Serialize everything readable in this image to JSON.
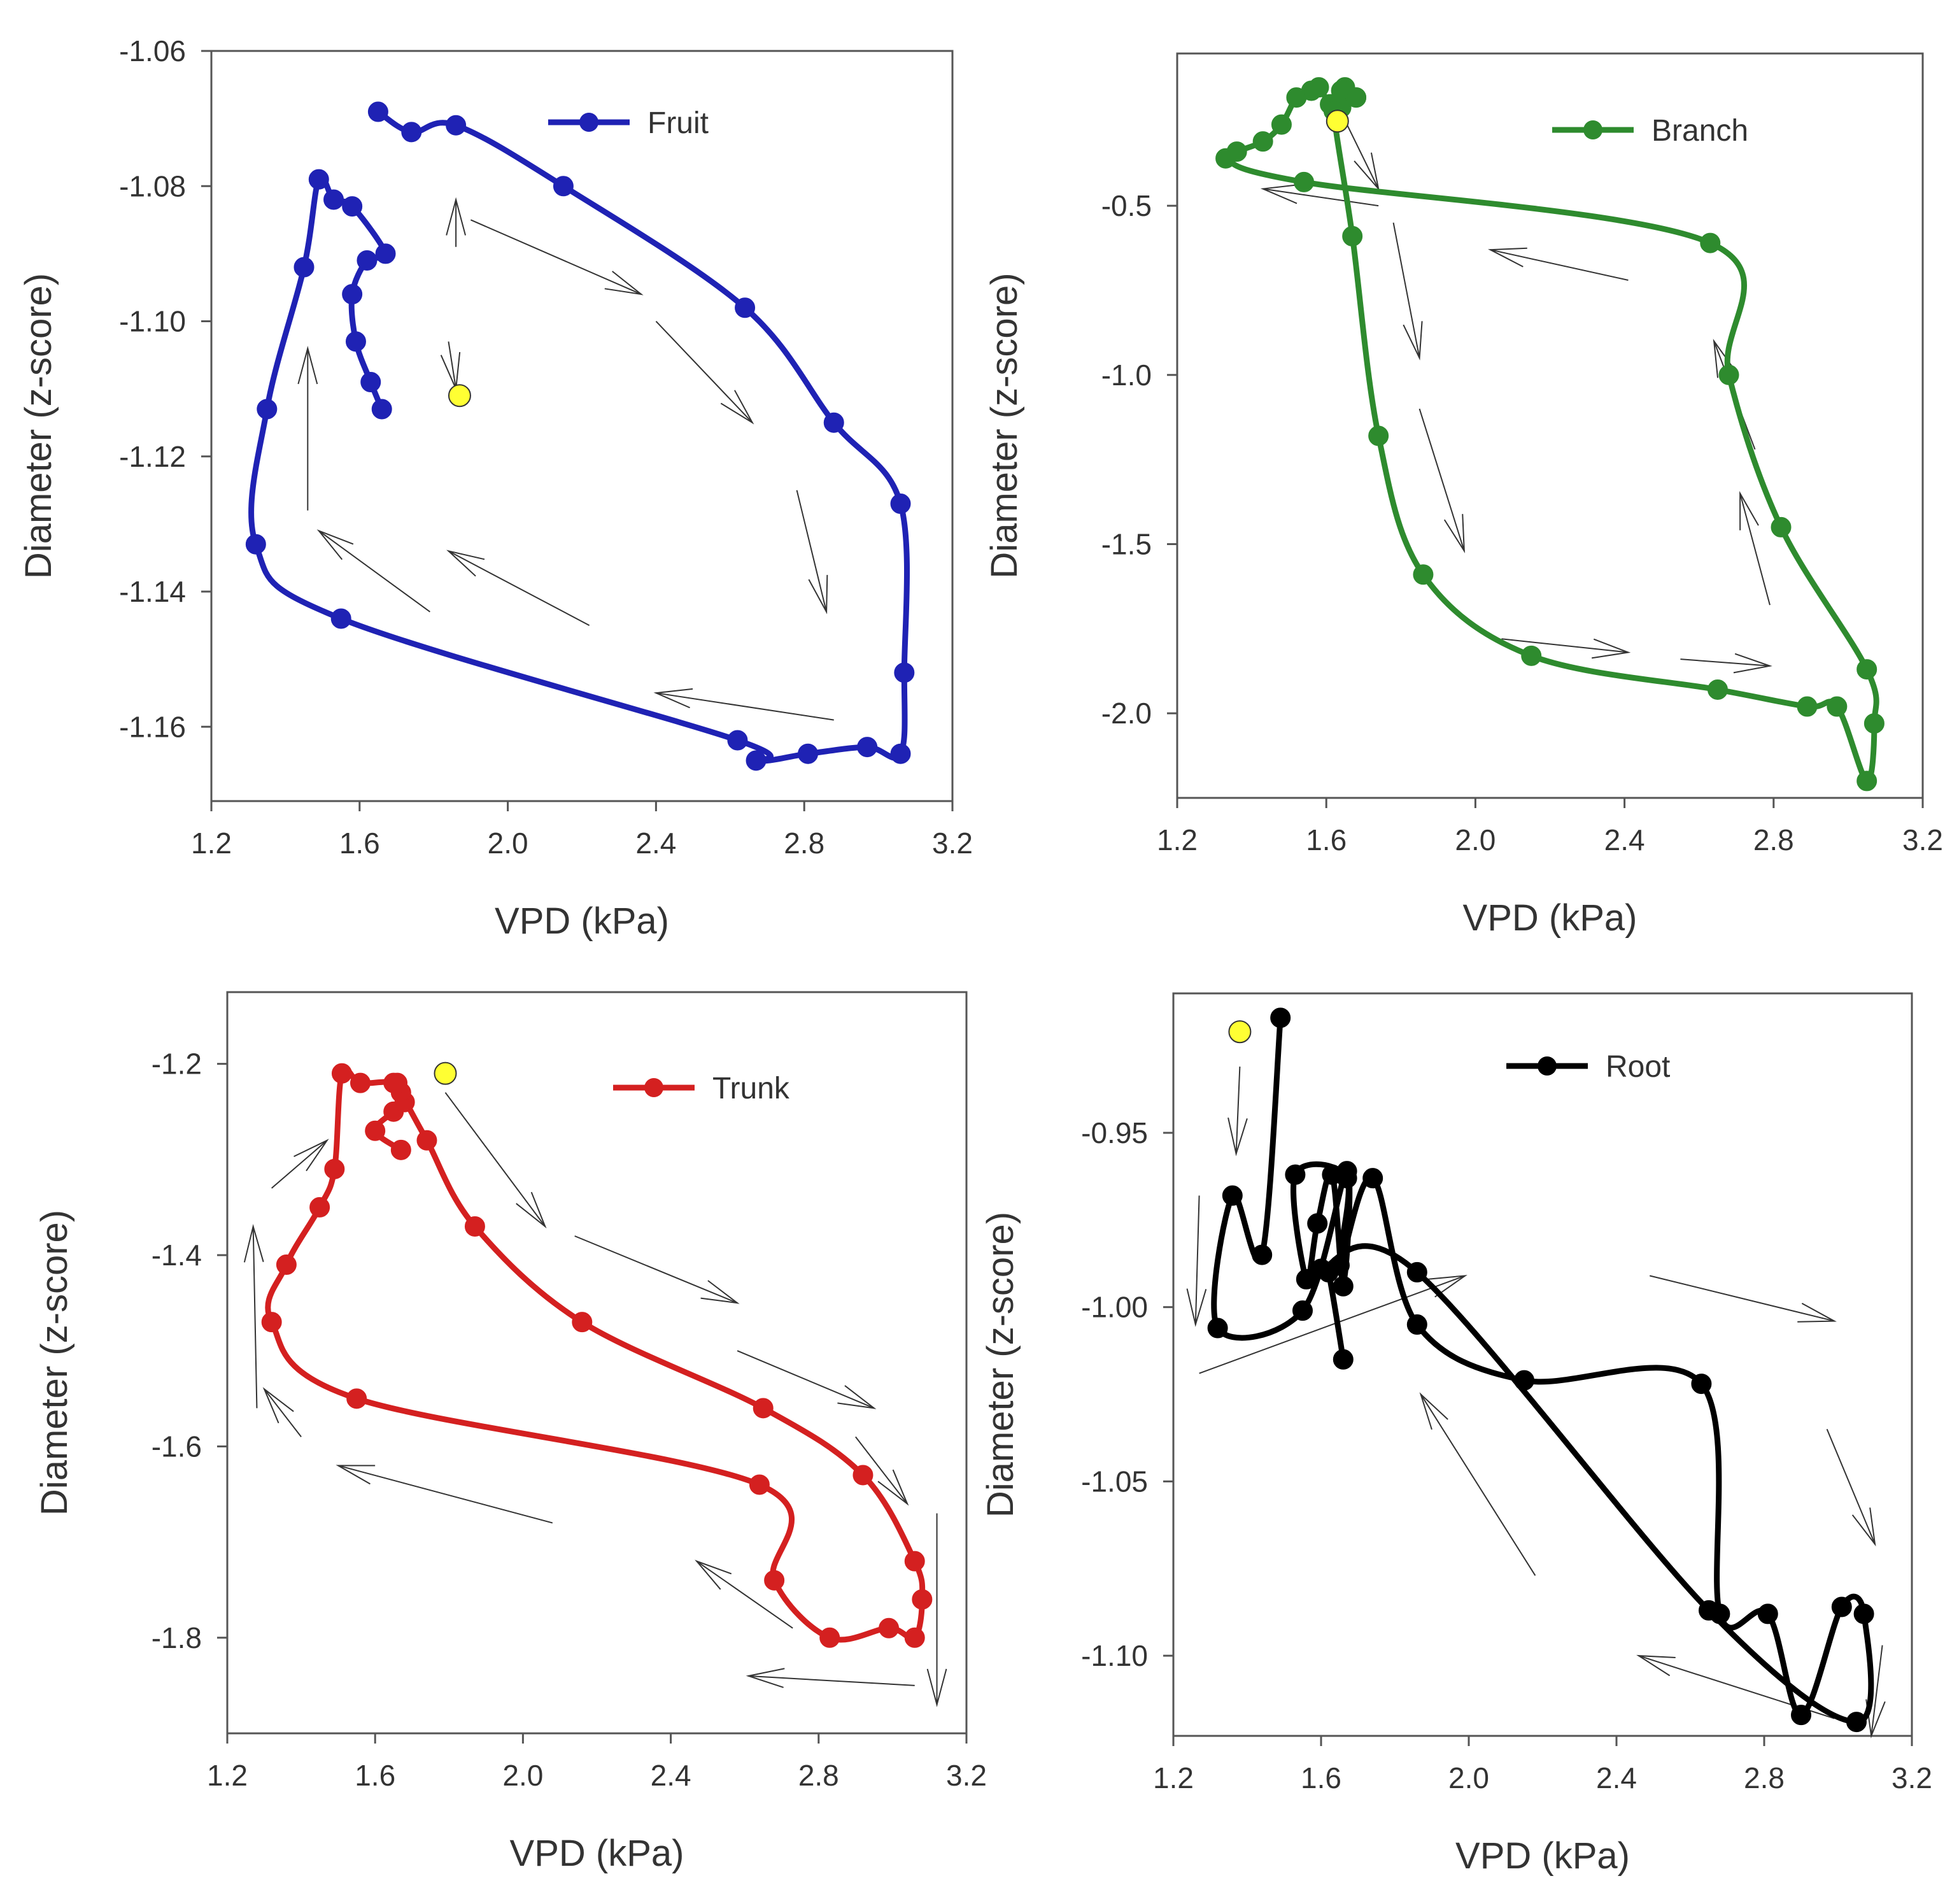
{
  "chart_data": [
    {
      "id": "fruit",
      "type": "line",
      "xlabel": "VPD (kPa)",
      "ylabel": "Diameter (z-score)",
      "xlim": [
        1.2,
        3.2
      ],
      "ylim": [
        -1.171,
        -1.06
      ],
      "xticks": [
        "1.2",
        "1.6",
        "2.0",
        "2.4",
        "2.8",
        "3.2"
      ],
      "xtick_values": [
        1.2,
        1.6,
        2.0,
        2.4,
        2.8,
        3.2
      ],
      "yticks": [
        "-1.06",
        "-1.08",
        "-1.10",
        "-1.12",
        "-1.14",
        "-1.16"
      ],
      "ytick_values": [
        -1.06,
        -1.08,
        -1.1,
        -1.12,
        -1.14,
        -1.16
      ],
      "color": "#1f22b4",
      "legend": "Fruit",
      "start_point": {
        "x": 1.87,
        "y": -1.111
      },
      "series": [
        {
          "name": "Fruit",
          "x": [
            1.66,
            1.63,
            1.59,
            1.58,
            1.62,
            1.67,
            1.58,
            1.53,
            1.49,
            1.45,
            1.35,
            1.32,
            1.55,
            2.62,
            2.67,
            2.81,
            2.97,
            3.06,
            3.07,
            3.06,
            2.88,
            2.64,
            2.15,
            1.86,
            1.74,
            1.65
          ],
          "y": [
            -1.113,
            -1.109,
            -1.103,
            -1.096,
            -1.091,
            -1.09,
            -1.083,
            -1.082,
            -1.079,
            -1.092,
            -1.113,
            -1.133,
            -1.144,
            -1.162,
            -1.165,
            -1.164,
            -1.163,
            -1.164,
            -1.152,
            -1.127,
            -1.115,
            -1.098,
            -1.08,
            -1.071,
            -1.072,
            -1.069
          ]
        }
      ],
      "arrows": [
        {
          "from": [
            1.86,
            -1.089
          ],
          "to": [
            1.86,
            -1.082
          ]
        },
        {
          "from": [
            1.84,
            -1.103
          ],
          "to": [
            1.86,
            -1.11
          ]
        },
        {
          "from": [
            1.46,
            -1.128
          ],
          "to": [
            1.46,
            -1.104
          ]
        },
        {
          "from": [
            1.79,
            -1.143
          ],
          "to": [
            1.49,
            -1.131
          ]
        },
        {
          "from": [
            2.22,
            -1.145
          ],
          "to": [
            1.84,
            -1.134
          ]
        },
        {
          "from": [
            2.88,
            -1.159
          ],
          "to": [
            2.4,
            -1.155
          ]
        },
        {
          "from": [
            1.9,
            -1.085
          ],
          "to": [
            2.36,
            -1.096
          ]
        },
        {
          "from": [
            2.4,
            -1.1
          ],
          "to": [
            2.66,
            -1.115
          ]
        },
        {
          "from": [
            2.78,
            -1.125
          ],
          "to": [
            2.86,
            -1.143
          ]
        }
      ]
    },
    {
      "id": "branch",
      "type": "line",
      "xlabel": "VPD (kPa)",
      "ylabel": "Diameter (z-score)",
      "xlim": [
        1.2,
        3.2
      ],
      "ylim": [
        -2.25,
        -0.05
      ],
      "xticks": [
        "1.2",
        "1.6",
        "2.0",
        "2.4",
        "2.8",
        "3.2"
      ],
      "xtick_values": [
        1.2,
        1.6,
        2.0,
        2.4,
        2.8,
        3.2
      ],
      "yticks": [
        "-0.5",
        "-1.0",
        "-1.5",
        "-2.0"
      ],
      "ytick_values": [
        -0.5,
        -1.0,
        -1.5,
        -2.0
      ],
      "color": "#2e8b2e",
      "legend": "Branch",
      "start_point": {
        "x": 1.63,
        "y": -0.25
      },
      "series": [
        {
          "name": "Branch",
          "x": [
            1.68,
            1.65,
            1.64,
            1.61,
            1.58,
            1.56,
            1.52,
            1.48,
            1.43,
            1.36,
            1.33,
            1.54,
            2.63,
            2.68,
            2.82,
            3.05,
            3.07,
            3.05,
            2.97,
            2.89,
            2.65,
            2.15,
            1.86,
            1.74,
            1.67,
            1.62,
            1.64,
            1.68
          ],
          "y": [
            -0.18,
            -0.15,
            -0.21,
            -0.2,
            -0.15,
            -0.16,
            -0.18,
            -0.26,
            -0.31,
            -0.34,
            -0.36,
            -0.43,
            -0.61,
            -1.0,
            -1.45,
            -1.87,
            -2.03,
            -2.2,
            -1.98,
            -1.98,
            -1.93,
            -1.83,
            -1.59,
            -1.18,
            -0.59,
            -0.22,
            -0.16,
            -0.18
          ]
        }
      ],
      "arrows": [
        {
          "from": [
            1.62,
            -0.18
          ],
          "to": [
            1.74,
            -0.45
          ]
        },
        {
          "from": [
            1.78,
            -0.55
          ],
          "to": [
            1.85,
            -0.95
          ]
        },
        {
          "from": [
            1.85,
            -1.1
          ],
          "to": [
            1.97,
            -1.52
          ]
        },
        {
          "from": [
            1.74,
            -0.5
          ],
          "to": [
            1.43,
            -0.45
          ]
        },
        {
          "from": [
            2.41,
            -0.72
          ],
          "to": [
            2.04,
            -0.63
          ]
        },
        {
          "from": [
            2.79,
            -1.68
          ],
          "to": [
            2.71,
            -1.35
          ]
        },
        {
          "from": [
            2.75,
            -1.22
          ],
          "to": [
            2.64,
            -0.9
          ]
        },
        {
          "from": [
            2.07,
            -1.78
          ],
          "to": [
            2.41,
            -1.82
          ]
        },
        {
          "from": [
            2.55,
            -1.84
          ],
          "to": [
            2.79,
            -1.86
          ]
        }
      ]
    },
    {
      "id": "trunk",
      "type": "line",
      "xlabel": "VPD (kPa)",
      "ylabel": "Diameter (z-score)",
      "xlim": [
        1.2,
        3.2
      ],
      "ylim": [
        -1.9,
        -1.125
      ],
      "xticks": [
        "1.2",
        "1.6",
        "2.0",
        "2.4",
        "2.8",
        "3.2"
      ],
      "xtick_values": [
        1.2,
        1.6,
        2.0,
        2.4,
        2.8,
        3.2
      ],
      "yticks": [
        "-1.2",
        "-1.4",
        "-1.6",
        "-1.8"
      ],
      "ytick_values": [
        -1.2,
        -1.4,
        -1.6,
        -1.8
      ],
      "color": "#d42020",
      "legend": "Trunk",
      "start_point": {
        "x": 1.79,
        "y": -1.21
      },
      "series": [
        {
          "name": "Trunk",
          "x": [
            1.67,
            1.6,
            1.65,
            1.68,
            1.65,
            1.56,
            1.51,
            1.49,
            1.45,
            1.36,
            1.32,
            1.55,
            2.64,
            2.68,
            2.83,
            2.99,
            3.06,
            3.08,
            3.06,
            2.92,
            2.65,
            2.16,
            1.87,
            1.74,
            1.67,
            1.66
          ],
          "y": [
            -1.29,
            -1.27,
            -1.25,
            -1.24,
            -1.22,
            -1.22,
            -1.21,
            -1.31,
            -1.35,
            -1.41,
            -1.47,
            -1.55,
            -1.64,
            -1.74,
            -1.8,
            -1.79,
            -1.8,
            -1.76,
            -1.72,
            -1.63,
            -1.56,
            -1.47,
            -1.37,
            -1.28,
            -1.23,
            -1.22
          ]
        }
      ],
      "arrows": [
        {
          "from": [
            1.79,
            -1.23
          ],
          "to": [
            2.06,
            -1.37
          ]
        },
        {
          "from": [
            2.14,
            -1.38
          ],
          "to": [
            2.58,
            -1.45
          ]
        },
        {
          "from": [
            2.58,
            -1.5
          ],
          "to": [
            2.95,
            -1.56
          ]
        },
        {
          "from": [
            2.9,
            -1.59
          ],
          "to": [
            3.04,
            -1.66
          ]
        },
        {
          "from": [
            3.12,
            -1.67
          ],
          "to": [
            3.12,
            -1.87
          ]
        },
        {
          "from": [
            3.06,
            -1.85
          ],
          "to": [
            2.61,
            -1.84
          ]
        },
        {
          "from": [
            2.73,
            -1.79
          ],
          "to": [
            2.47,
            -1.72
          ]
        },
        {
          "from": [
            2.08,
            -1.68
          ],
          "to": [
            1.5,
            -1.62
          ]
        },
        {
          "from": [
            1.4,
            -1.59
          ],
          "to": [
            1.3,
            -1.54
          ]
        },
        {
          "from": [
            1.28,
            -1.56
          ],
          "to": [
            1.27,
            -1.37
          ]
        },
        {
          "from": [
            1.32,
            -1.33
          ],
          "to": [
            1.47,
            -1.28
          ]
        }
      ]
    },
    {
      "id": "root",
      "type": "line",
      "xlabel": "VPD (kPa)",
      "ylabel": "Diameter (z-score)",
      "xlim": [
        1.2,
        3.2
      ],
      "ylim": [
        -1.123,
        -0.91
      ],
      "xticks": [
        "1.2",
        "1.6",
        "2.0",
        "2.4",
        "2.8",
        "3.2"
      ],
      "xtick_values": [
        1.2,
        1.6,
        2.0,
        2.4,
        2.8,
        3.2
      ],
      "yticks": [
        "-0.95",
        "-1.00",
        "-1.05",
        "-1.10"
      ],
      "ytick_values": [
        -0.95,
        -1.0,
        -1.05,
        -1.1
      ],
      "color": "#000000",
      "legend": "Root",
      "start_point": {
        "x": 1.38,
        "y": -0.921
      },
      "series": [
        {
          "name": "Root",
          "x": [
            1.49,
            1.44,
            1.36,
            1.32,
            1.55,
            1.67,
            1.66,
            1.63,
            1.59,
            1.56,
            1.53,
            1.67,
            1.65,
            1.74,
            1.86,
            2.15,
            2.63,
            2.68,
            2.81,
            2.9,
            3.01,
            3.07,
            3.05,
            2.65,
            1.86,
            1.6,
            1.62,
            1.66
          ],
          "y": [
            -0.917,
            -0.985,
            -0.968,
            -1.006,
            -1.001,
            -0.961,
            -0.994,
            -0.962,
            -0.976,
            -0.992,
            -0.962,
            -0.963,
            -0.988,
            -0.963,
            -1.005,
            -1.021,
            -1.022,
            -1.088,
            -1.088,
            -1.117,
            -1.086,
            -1.088,
            -1.119,
            -1.087,
            -0.99,
            -0.989,
            -0.99,
            -1.015
          ]
        }
      ],
      "arrows": [
        {
          "from": [
            1.38,
            -0.931
          ],
          "to": [
            1.37,
            -0.956
          ]
        },
        {
          "from": [
            1.27,
            -0.968
          ],
          "to": [
            1.26,
            -1.005
          ]
        },
        {
          "from": [
            1.27,
            -1.019
          ],
          "to": [
            1.99,
            -0.991
          ]
        },
        {
          "from": [
            2.49,
            -0.991
          ],
          "to": [
            2.99,
            -1.004
          ]
        },
        {
          "from": [
            2.97,
            -1.035
          ],
          "to": [
            3.1,
            -1.068
          ]
        },
        {
          "from": [
            3.12,
            -1.097
          ],
          "to": [
            3.09,
            -1.123
          ]
        },
        {
          "from": [
            2.99,
            -1.118
          ],
          "to": [
            2.46,
            -1.1
          ]
        },
        {
          "from": [
            2.18,
            -1.077
          ],
          "to": [
            1.87,
            -1.025
          ]
        }
      ]
    }
  ]
}
